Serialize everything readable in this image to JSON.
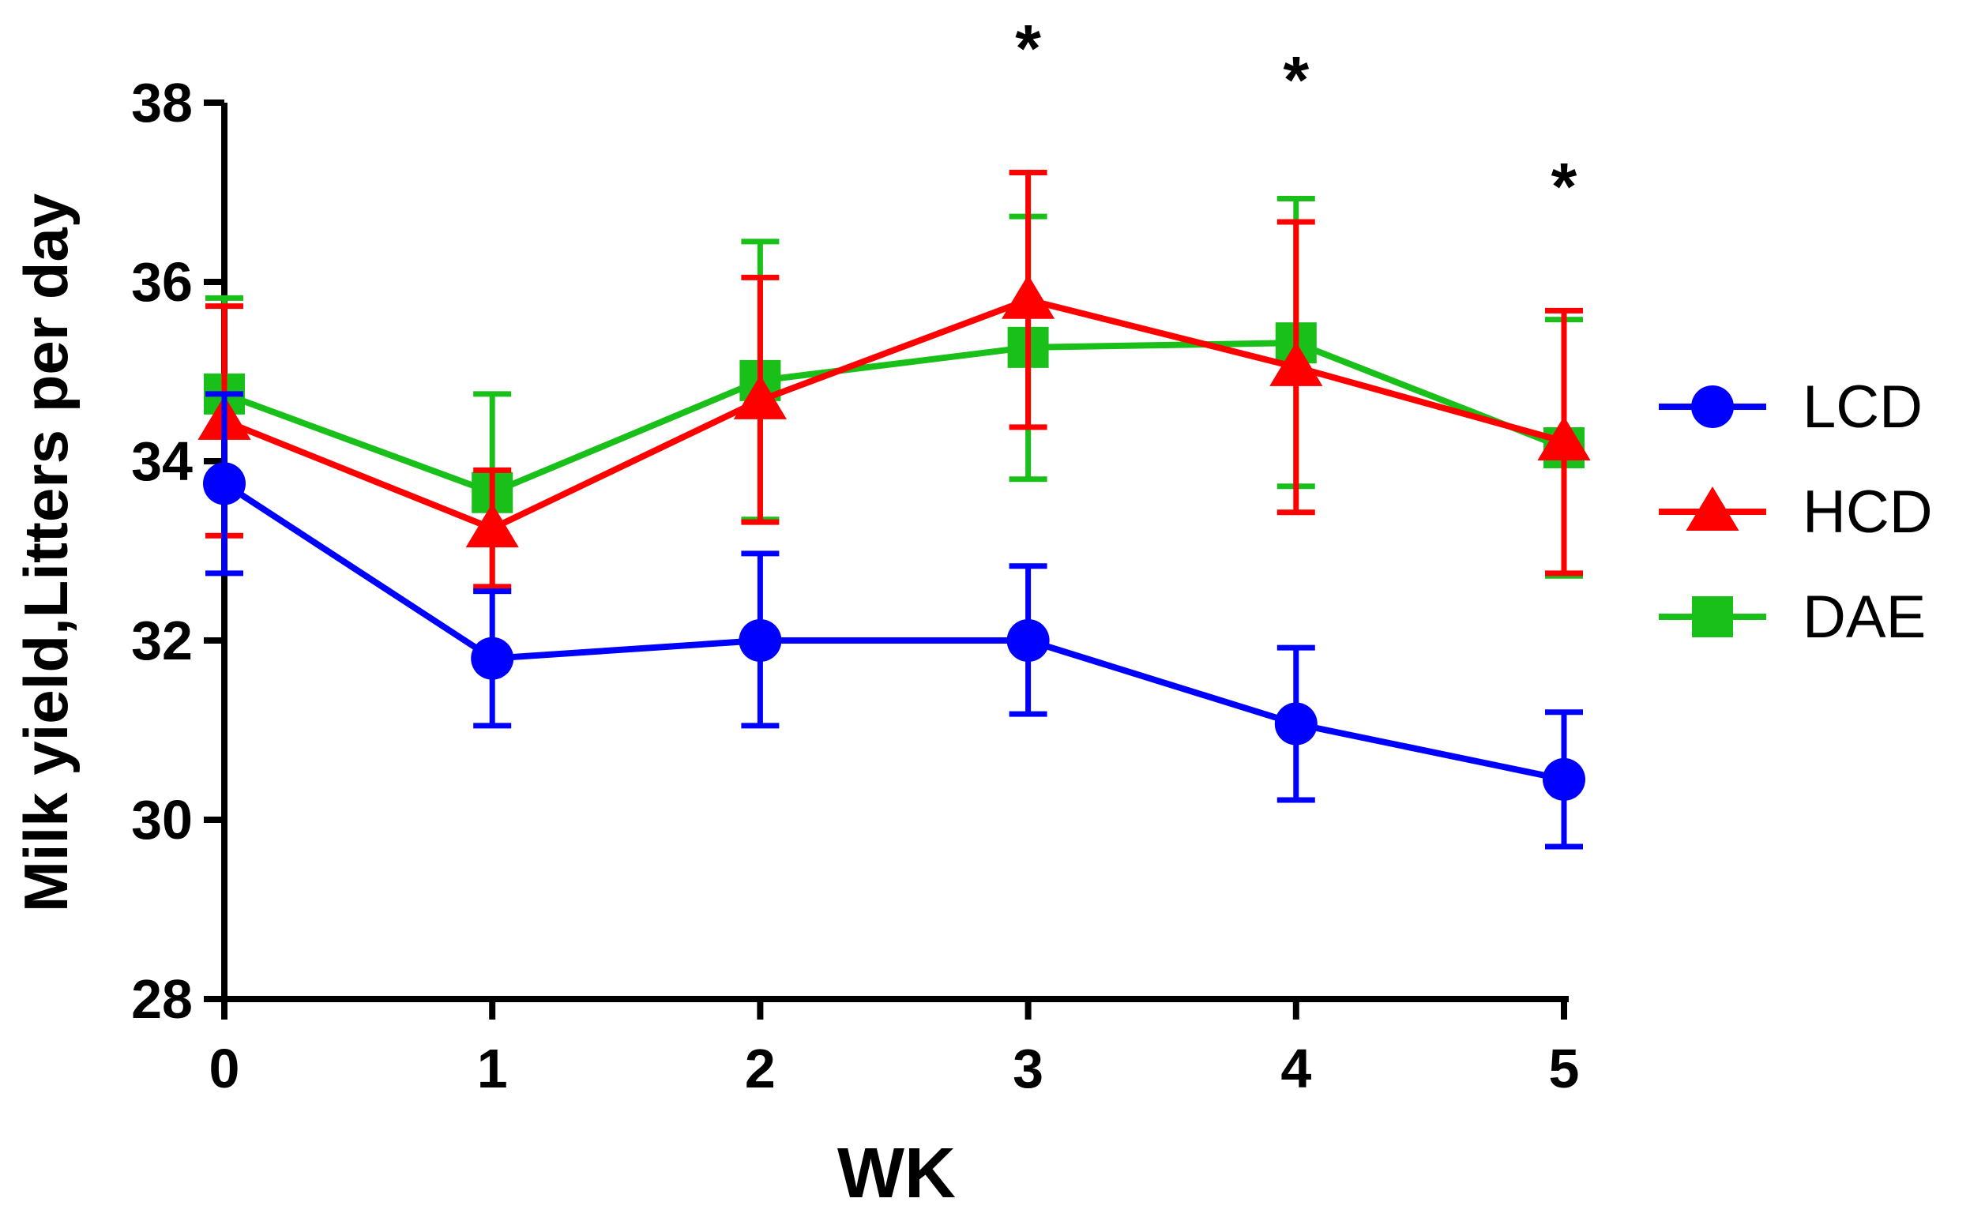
{
  "chart_data": {
    "type": "line",
    "title": "",
    "xlabel": "WK",
    "ylabel": "Milk yield,Litters per day",
    "x": [
      0,
      1,
      2,
      3,
      4,
      5
    ],
    "xlim": [
      0,
      5
    ],
    "ylim": [
      28,
      38
    ],
    "yticks": [
      28,
      30,
      32,
      34,
      36,
      38
    ],
    "xticks": [
      0,
      1,
      2,
      3,
      4,
      5
    ],
    "grid": false,
    "legend_position": "right",
    "series": [
      {
        "name": "LCD",
        "color": "#0000ff",
        "marker": "circle",
        "values": [
          33.75,
          31.8,
          32.0,
          32.0,
          31.07,
          30.45
        ],
        "error_low": [
          32.75,
          31.05,
          31.05,
          31.18,
          30.22,
          29.7
        ],
        "error_high": [
          34.75,
          32.55,
          32.97,
          32.83,
          31.92,
          31.2
        ]
      },
      {
        "name": "HCD",
        "color": "#ff0000",
        "marker": "triangle",
        "values": [
          34.45,
          33.25,
          34.68,
          35.8,
          35.05,
          34.22
        ],
        "error_low": [
          33.17,
          32.6,
          33.32,
          34.38,
          33.43,
          32.75
        ],
        "error_high": [
          35.73,
          33.9,
          36.05,
          37.22,
          36.67,
          35.68
        ]
      },
      {
        "name": "DAE",
        "color": "#19c019",
        "marker": "square",
        "values": [
          34.75,
          33.65,
          34.9,
          35.27,
          35.32,
          34.15
        ],
        "error_low": [
          33.68,
          32.55,
          33.35,
          33.8,
          33.72,
          32.72
        ],
        "error_high": [
          35.82,
          34.75,
          36.45,
          36.73,
          36.93,
          35.58
        ]
      }
    ],
    "annotations": [
      {
        "x": 3,
        "text": "*"
      },
      {
        "x": 4,
        "text": "*"
      },
      {
        "x": 5,
        "text": "*"
      }
    ]
  }
}
